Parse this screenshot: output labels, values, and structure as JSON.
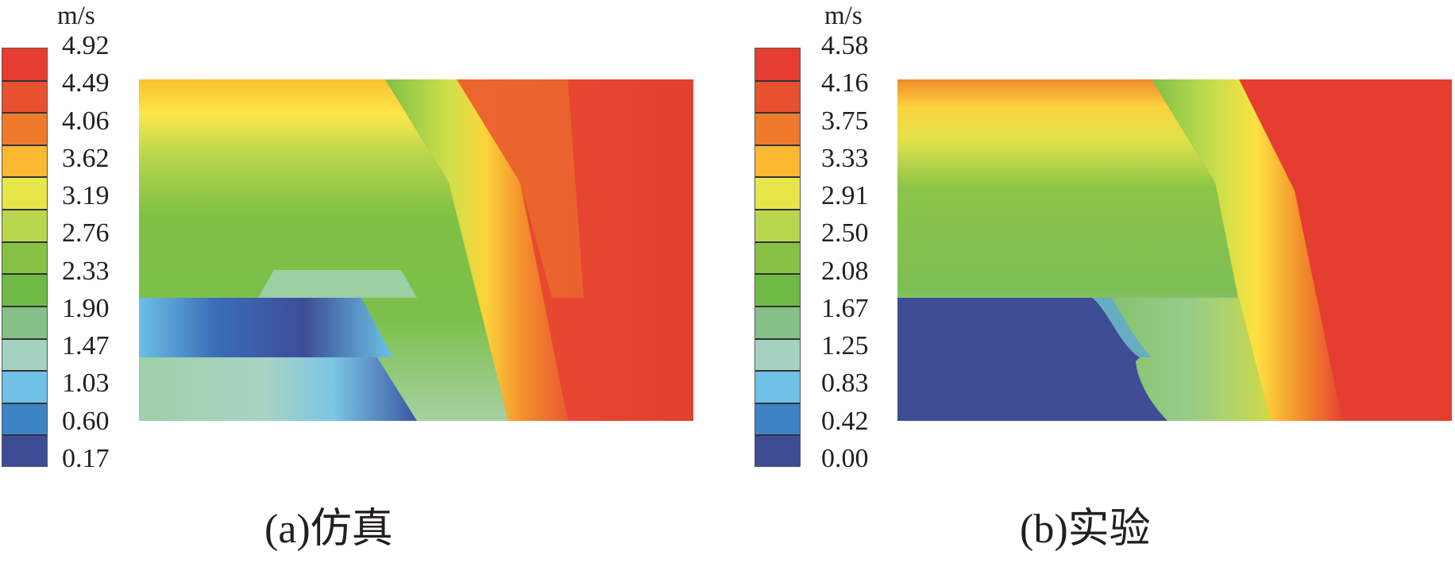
{
  "chart_data": [
    {
      "type": "heatmap",
      "title": "",
      "caption": "(a)仿真",
      "colorbar": {
        "unit": "m/s",
        "ticks": [
          "4.92",
          "4.49",
          "4.06",
          "3.62",
          "3.19",
          "2.76",
          "2.33",
          "1.90",
          "1.47",
          "1.03",
          "0.60",
          "0.17"
        ],
        "colors": [
          "#e53e30",
          "#e8512f",
          "#f07a2c",
          "#fbb830",
          "#e6e64a",
          "#b7d64e",
          "#88c245",
          "#6fba45",
          "#86c089",
          "#a5d1c0",
          "#6fc1e8",
          "#3c84c6",
          "#3f4c96"
        ],
        "range": [
          0.17,
          4.92
        ]
      }
    },
    {
      "type": "heatmap",
      "title": "",
      "caption": "(b)实验",
      "colorbar": {
        "unit": "m/s",
        "ticks": [
          "4.58",
          "4.16",
          "3.75",
          "3.33",
          "2.91",
          "2.50",
          "2.08",
          "1.67",
          "1.25",
          "0.83",
          "0.42",
          "0.00"
        ],
        "colors": [
          "#e53e30",
          "#e8512f",
          "#f07a2c",
          "#fbb830",
          "#e6e64a",
          "#b7d64e",
          "#88c245",
          "#6fba45",
          "#86c089",
          "#a5d1c0",
          "#6fc1e8",
          "#3c84c6",
          "#3f4c96"
        ],
        "range": [
          0.0,
          4.58
        ]
      }
    }
  ]
}
